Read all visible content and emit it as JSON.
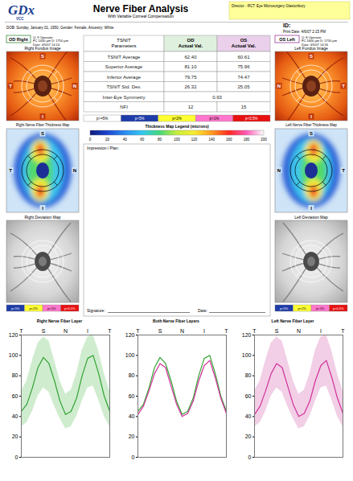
{
  "header": {
    "logo": "GDx",
    "logo_sub": "VCC",
    "title": "Nerve Fiber Analysis",
    "subtitle": "With Variable Corneal Compensation",
    "clinic": "Director - RCT: Eye Microsurgery Glastonbury",
    "id": "ID:",
    "print_date": "Print Date: 4/6/07 2:15 PM"
  },
  "patient": "DOB: Sunday, January 01, 1950, Gender: Female, Ancestry: White",
  "eyes": [
    {
      "tag": "OD Right",
      "scan_info": [
        "Q: 9    Operator:",
        "FC 1450 µm  D: 1750 µm",
        "Date: 4/5/07 14:14"
      ],
      "fundus_title": "Right Fundus Image",
      "thickness_title": "Right Nerve Fiber Thickness Map",
      "deviation_title": "Right Deviation Map",
      "quadrants": [
        "S",
        "T",
        "N",
        "I"
      ]
    },
    {
      "tag": "OS Left",
      "scan_info": [
        "Q: 8    Operator:",
        "FC 1600 µm  D: 1750 µm",
        "Date: 4/5/07 14:16"
      ],
      "fundus_title": "Left Fundus Image",
      "thickness_title": "Left Nerve Fiber Thickness Map",
      "deviation_title": "Left Deviation Map",
      "quadrants": [
        "S",
        "N",
        "T",
        "I"
      ]
    }
  ],
  "table": {
    "header": [
      [
        "TSNIT",
        "Parameters"
      ],
      [
        "OD",
        "Actual Val."
      ],
      [
        "OS",
        "Actual Val."
      ]
    ],
    "rows": [
      [
        "TSNIT Average",
        "62.40",
        "60.61"
      ],
      [
        "Superior Average",
        "81.10",
        "75.96"
      ],
      [
        "Inferior Average",
        "79.75",
        "74.47"
      ],
      [
        "TSNIT Std. Dev.",
        "26.32",
        "25.05"
      ],
      [
        "Inter-Eye Symmetry",
        "0.93"
      ],
      [
        "NFI",
        "12",
        "15"
      ]
    ]
  },
  "significance_legend": {
    "labels": [
      "p>=5%",
      "p<5%",
      "p<2%",
      "p<1%",
      "p<0.5%"
    ],
    "colors": [
      "#ffffff",
      "#1e3ca8",
      "#ffff33",
      "#ff77cc",
      "#e81010"
    ]
  },
  "thickness_legend": {
    "title": "Thickness Map Legend (microns)",
    "ticks": [
      0,
      20,
      40,
      60,
      80,
      100,
      120,
      140,
      160,
      180,
      200
    ]
  },
  "impression": "Impression / Plan:",
  "signature": "Signature:",
  "date": "Date:",
  "deviation_legend": [
    "p<5%",
    "p<2%",
    "p<1%",
    "p<0.5%"
  ],
  "chart_data": [
    {
      "type": "line",
      "title": "Right Nerve Fiber Layer",
      "grid": false,
      "x": [
        0,
        16,
        32,
        48,
        64,
        80,
        96,
        112,
        128,
        144,
        160,
        176,
        192,
        208,
        224,
        240,
        256
      ],
      "xlim": [
        0,
        256
      ],
      "xticks": [
        {
          "value": 0,
          "label": "T"
        },
        {
          "value": 64,
          "label": "S"
        },
        {
          "value": 128,
          "label": "N"
        },
        {
          "value": 192,
          "label": "I"
        },
        {
          "value": 256,
          "label": "T"
        }
      ],
      "ylim": [
        0,
        120
      ],
      "yticks": [
        0,
        20,
        40,
        60,
        80,
        100,
        120
      ],
      "normal_range": {
        "color": "#cfeccf",
        "lower": [
          30,
          34,
          45,
          60,
          68,
          64,
          50,
          38,
          28,
          30,
          40,
          55,
          68,
          70,
          56,
          40,
          30
        ],
        "upper": [
          65,
          75,
          95,
          112,
          118,
          114,
          95,
          75,
          62,
          66,
          82,
          105,
          118,
          120,
          104,
          82,
          65
        ]
      },
      "series": [
        {
          "color": "#33a333",
          "values": [
            45,
            52,
            68,
            88,
            98,
            92,
            75,
            55,
            42,
            45,
            58,
            80,
            97,
            100,
            82,
            60,
            45
          ]
        }
      ]
    },
    {
      "type": "line",
      "title": "Both Nerve Fiber Layers",
      "grid": false,
      "x": [
        0,
        16,
        32,
        48,
        64,
        80,
        96,
        112,
        128,
        144,
        160,
        176,
        192,
        208,
        224,
        240,
        256
      ],
      "xlim": [
        0,
        256
      ],
      "xticks": [
        {
          "value": 0,
          "label": "T"
        },
        {
          "value": 64,
          "label": "S"
        },
        {
          "value": 128,
          "label": "N"
        },
        {
          "value": 192,
          "label": "I"
        },
        {
          "value": 256,
          "label": "T"
        }
      ],
      "ylim": [
        0,
        120
      ],
      "yticks": [
        0,
        20,
        40,
        60,
        80,
        100,
        120
      ],
      "series": [
        {
          "color": "#33a333",
          "values": [
            45,
            52,
            68,
            88,
            98,
            92,
            75,
            55,
            42,
            45,
            58,
            80,
            97,
            100,
            82,
            60,
            45
          ]
        },
        {
          "color": "#d0309a",
          "values": [
            42,
            50,
            65,
            82,
            92,
            88,
            70,
            52,
            40,
            43,
            55,
            75,
            90,
            95,
            78,
            58,
            43
          ]
        }
      ]
    },
    {
      "type": "line",
      "title": "Left Nerve Fiber Layer",
      "grid": false,
      "x": [
        0,
        16,
        32,
        48,
        64,
        80,
        96,
        112,
        128,
        144,
        160,
        176,
        192,
        208,
        224,
        240,
        256
      ],
      "xlim": [
        0,
        256
      ],
      "xticks": [
        {
          "value": 0,
          "label": "T"
        },
        {
          "value": 64,
          "label": "S"
        },
        {
          "value": 128,
          "label": "N"
        },
        {
          "value": 192,
          "label": "I"
        },
        {
          "value": 256,
          "label": "T"
        }
      ],
      "ylim": [
        0,
        120
      ],
      "yticks": [
        0,
        20,
        40,
        60,
        80,
        100,
        120
      ],
      "normal_range": {
        "color": "#f2cfe6",
        "lower": [
          30,
          34,
          45,
          60,
          68,
          64,
          50,
          38,
          28,
          30,
          40,
          55,
          68,
          70,
          56,
          40,
          30
        ],
        "upper": [
          65,
          75,
          95,
          112,
          118,
          114,
          95,
          75,
          62,
          66,
          82,
          105,
          118,
          120,
          104,
          82,
          65
        ]
      },
      "series": [
        {
          "color": "#d0309a",
          "values": [
            42,
            50,
            65,
            82,
            92,
            88,
            70,
            52,
            40,
            43,
            55,
            75,
            90,
            95,
            78,
            58,
            43
          ]
        }
      ]
    }
  ]
}
